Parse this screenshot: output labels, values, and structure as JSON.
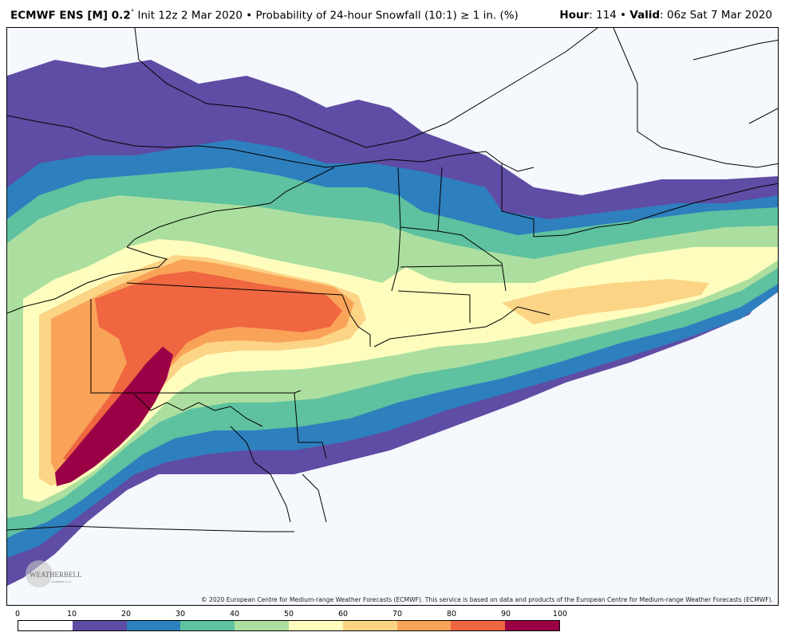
{
  "header": {
    "model_label": "ECMWF ENS [M] 0.2",
    "degree_symbol": "°",
    "description": " Init 12z 2 Mar 2020 • Probability of 24-hour Snowfall (10:1) ≥ 1 in. (%)",
    "hour_label": "Hour",
    "hour_value": ": 114 • ",
    "valid_label": "Valid",
    "valid_value": ": 06z Sat 7 Mar 2020"
  },
  "map": {
    "credit": "© 2020 European Centre for Medium-range Weather Forecasts (ECMWF). This service is based on data and products of the European Centre for Medium-range Weather Forecasts (ECMWF).",
    "logo_text": "WEATHERBELL",
    "logo_subtext": "Analytics LLC"
  },
  "legend": {
    "ticks": [
      "0",
      "10",
      "20",
      "30",
      "40",
      "50",
      "60",
      "70",
      "80",
      "90",
      "100"
    ],
    "colors": [
      "#ffffff",
      "#5f4ca4",
      "#2e7fbd",
      "#5ec1a0",
      "#acdf9f",
      "#fefdbd",
      "#fcd486",
      "#f9a359",
      "#ef6641",
      "#9a0045"
    ]
  }
}
